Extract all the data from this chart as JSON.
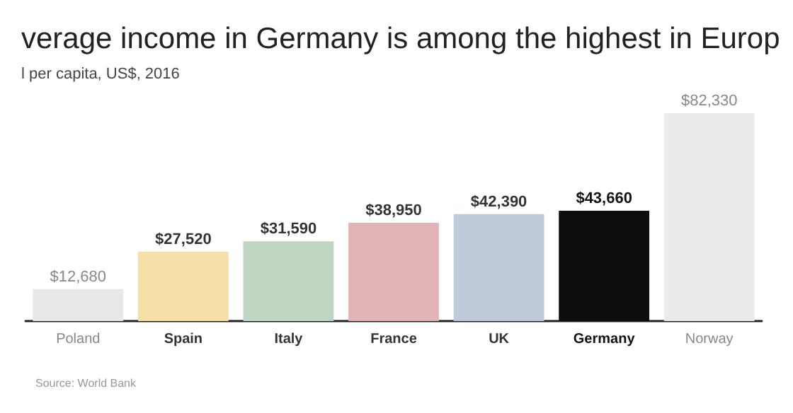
{
  "chart_data": {
    "type": "bar",
    "title": "verage income in Germany is among the highest in Europ",
    "subtitle": "l per capita, US$, 2016",
    "categories": [
      "Poland",
      "Spain",
      "Italy",
      "France",
      "UK",
      "Germany",
      "Norway"
    ],
    "values": [
      12680,
      27520,
      31590,
      38950,
      42390,
      43660,
      82330
    ],
    "colors": [
      "#e8e8e8",
      "#f6e0aa",
      "#bed6c2",
      "#e2b4b7",
      "#c0cadb",
      "#0d0d0d",
      "#ebebeb"
    ],
    "value_labels": [
      "$12,680",
      "$27,520",
      "$31,590",
      "$38,950",
      "$42,390",
      "$43,660",
      "$82,330"
    ],
    "annotations": [
      "Source: World Bank"
    ],
    "grid": false
  }
}
